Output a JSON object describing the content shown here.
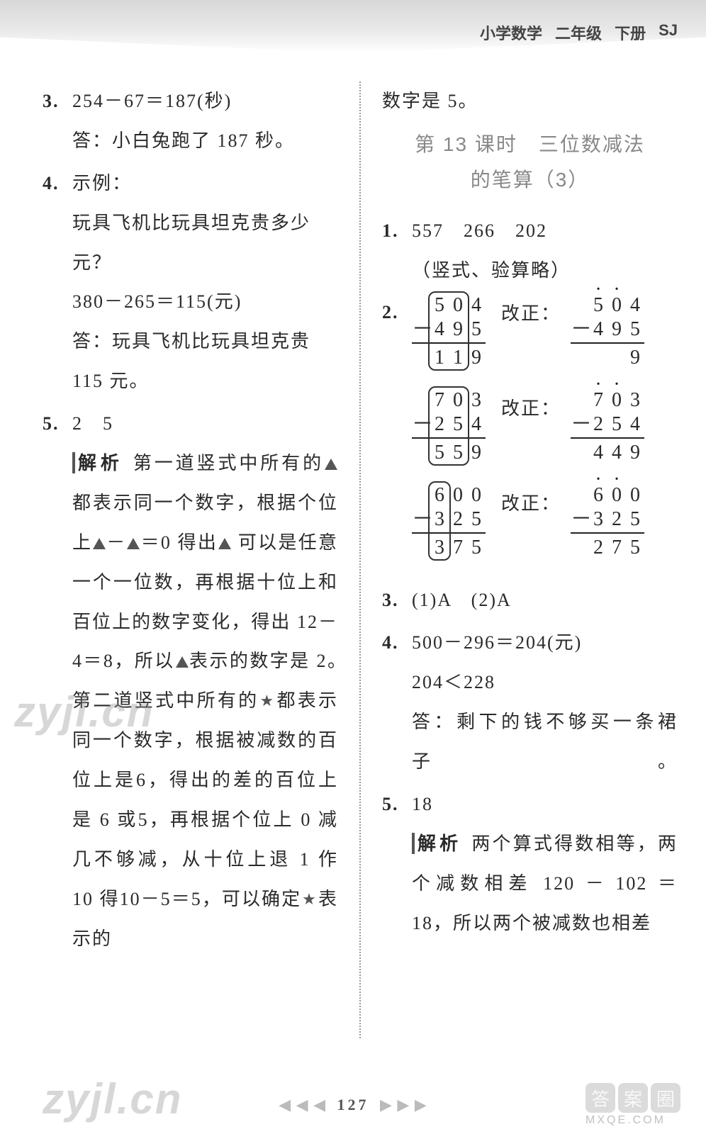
{
  "header": {
    "subject": "小学数学",
    "grade": "二年级",
    "volume": "下册",
    "edition": "SJ"
  },
  "left": {
    "q3": {
      "eq": "254－67＝187(秒)",
      "ans": "答：小白兔跑了 187 秒。"
    },
    "q4": {
      "lead": "示例：",
      "question": "玩具飞机比玩具坦克贵多少元？",
      "eq": "380－265＝115(元)",
      "ans": "答：玩具飞机比玩具坦克贵115 元。"
    },
    "q5": {
      "vals": "2　5",
      "analysis_label": "解析",
      "text1": "第一道竖式中所有的",
      "text2": "都表示同一个数字，根据个位上",
      "text3": "－",
      "text4": "＝0 得出",
      "text5": " 可以是任意一个一位数，再根据十位上和百位上的数字变化，得出 12－4＝8，所以",
      "text6": "表示的数字是 2。　第二道竖式中所有的",
      "text7": "都表示同一个数字，根据被减数的百位上是6，得出的差的百位上是 6 或5，再根据个位上 0 减几不够减，从十位上退 1 作 10 得10－5＝5，可以确定",
      "text8": "表示的"
    }
  },
  "right": {
    "continuation": "数字是 5。",
    "section": {
      "line1": "第 13 课时　三位数减法",
      "line2": "的笔算（3）"
    },
    "q1": {
      "vals": "557　266　202",
      "note": "（竖式、验算略）"
    },
    "q2": {
      "label_correct": "改正：",
      "calc1": {
        "wrong": {
          "r1": [
            "5",
            "0",
            "4"
          ],
          "r2": [
            "4",
            "9",
            "5"
          ],
          "r3": [
            "1",
            "1",
            "9"
          ]
        },
        "right": {
          "r1": [
            "5",
            "0",
            "4"
          ],
          "r2": [
            "4",
            "9",
            "5"
          ],
          "r3": [
            "",
            "",
            "9"
          ]
        },
        "dots": [
          0,
          1
        ]
      },
      "calc2": {
        "wrong": {
          "r1": [
            "7",
            "0",
            "3"
          ],
          "r2": [
            "2",
            "5",
            "4"
          ],
          "r3": [
            "5",
            "5",
            "9"
          ]
        },
        "right": {
          "r1": [
            "7",
            "0",
            "3"
          ],
          "r2": [
            "2",
            "5",
            "4"
          ],
          "r3": [
            "4",
            "4",
            "9"
          ]
        },
        "dots": [
          0,
          1
        ]
      },
      "calc3": {
        "wrong": {
          "r1": [
            "6",
            "0",
            "0"
          ],
          "r2": [
            "3",
            "2",
            "5"
          ],
          "r3": [
            "3",
            "7",
            "5"
          ]
        },
        "right": {
          "r1": [
            "6",
            "0",
            "0"
          ],
          "r2": [
            "3",
            "2",
            "5"
          ],
          "r3": [
            "2",
            "7",
            "5"
          ]
        },
        "dots": [
          0,
          1
        ]
      }
    },
    "q3": {
      "text": "(1)A　(2)A"
    },
    "q4": {
      "eq": "500－296＝204(元)",
      "cmp": "204＜228",
      "ans": "答：剩下的钱不够买一条裙子。"
    },
    "q5": {
      "val": "18",
      "analysis_label": "解析",
      "text": "两个算式得数相等，两个减数相差 120 － 102 ＝ 18，所以两个被减数也相差"
    }
  },
  "page": {
    "number": "127"
  },
  "watermarks": {
    "wm1": "zyjl.cn",
    "wm2": "zyjl.cn",
    "brand1": "答",
    "brand2": "案",
    "brand3": "圈",
    "site": "MXQE.COM"
  }
}
